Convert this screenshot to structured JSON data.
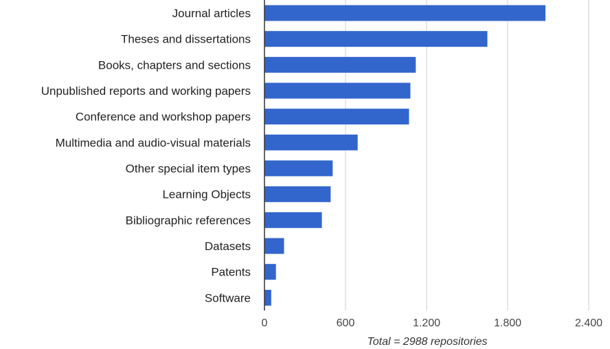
{
  "chart_data": {
    "type": "bar",
    "orientation": "horizontal",
    "categories": [
      "Journal articles",
      "Theses and dissertations",
      "Books, chapters and sections",
      "Unpublished reports and working papers",
      "Conference and workshop papers",
      "Multimedia and audio-visual materials",
      "Other special item types",
      "Learning Objects",
      "Bibliographic references",
      "Datasets",
      "Patents",
      "Software"
    ],
    "values": [
      2080,
      1650,
      1120,
      1080,
      1070,
      690,
      505,
      490,
      425,
      145,
      85,
      50
    ],
    "xlabel": "Total = 2988 repositories",
    "ylabel": "",
    "xlim": [
      0,
      2400
    ],
    "xticks": [
      0,
      600,
      1200,
      1800,
      2400
    ],
    "xtick_labels": [
      "0",
      "600",
      "1.200",
      "1.800",
      "2.400"
    ],
    "grid": true,
    "bar_color": "#3366cc"
  }
}
